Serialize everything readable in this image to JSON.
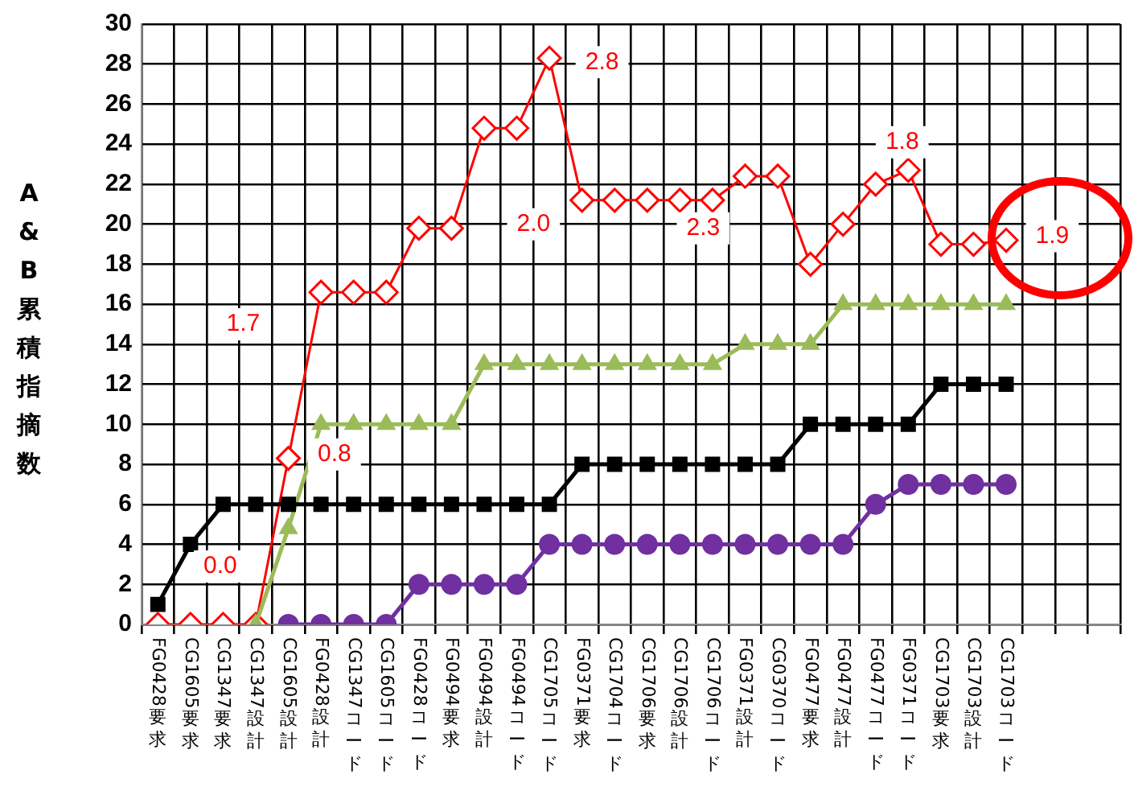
{
  "chart_data": {
    "type": "line",
    "ylabel": "A&B累積指摘数",
    "categories": [
      "FG0428要求",
      "CG1605要求",
      "CG1347要求",
      "CG1347設計",
      "CG1605設計",
      "FG0428設計",
      "CG1347コード",
      "CG1605コード",
      "FG0428コード",
      "FG0494要求",
      "FG0494設計",
      "FG0494コード",
      "CG1705コード",
      "FG0371要求",
      "CG1704コード",
      "CG1706要求",
      "CG1706設計",
      "CG1706コード",
      "FG0371設計",
      "CG0370コード",
      "FG0477要求",
      "FG0477設計",
      "FG0477コード",
      "FG0371コード",
      "CG1703要求",
      "CG1703設計",
      "CG1703コード",
      null,
      null,
      null
    ],
    "series": [
      {
        "color": "#7030a0",
        "marker": "circle",
        "values": [
          null,
          null,
          null,
          null,
          0,
          0,
          0,
          0,
          2,
          2,
          2,
          2,
          4,
          4,
          4,
          4,
          4,
          4,
          4,
          4,
          4,
          4,
          6,
          7,
          7,
          7,
          7,
          null,
          null,
          null
        ]
      },
      {
        "color": "#000000",
        "marker": "square",
        "values": [
          1,
          4,
          6,
          6,
          6,
          6,
          6,
          6,
          6,
          6,
          6,
          6,
          6,
          8,
          8,
          8,
          8,
          8,
          8,
          8,
          10,
          10,
          10,
          10,
          12,
          12,
          12,
          null,
          null,
          null
        ]
      },
      {
        "color": "#9bbb59",
        "marker": "triangle",
        "values": [
          null,
          null,
          null,
          0,
          4.8,
          10,
          10,
          10,
          10,
          10,
          13,
          13,
          13,
          13,
          13,
          13,
          13,
          13,
          14,
          14,
          14,
          16,
          16,
          16,
          16,
          16,
          16,
          null,
          null,
          null
        ]
      },
      {
        "color": "#ff0000",
        "marker": "diamond",
        "values": [
          0,
          0,
          0,
          0,
          8.3,
          16.6,
          16.6,
          16.6,
          19.8,
          19.8,
          24.8,
          24.8,
          28.3,
          21.2,
          21.2,
          21.2,
          21.2,
          21.2,
          22.4,
          22.4,
          18,
          20,
          22,
          22.7,
          19,
          19,
          19.2,
          null,
          null,
          null
        ]
      }
    ],
    "ylim": [
      0,
      30
    ],
    "yticks": [
      0,
      2,
      4,
      6,
      8,
      10,
      12,
      14,
      16,
      18,
      20,
      22,
      24,
      26,
      28,
      30
    ],
    "grid": true,
    "legend": false,
    "annotations": [
      "0.0",
      "1.7",
      "0.8",
      "2.8",
      "2.0",
      "2.3",
      "1.8",
      "1.9"
    ]
  }
}
